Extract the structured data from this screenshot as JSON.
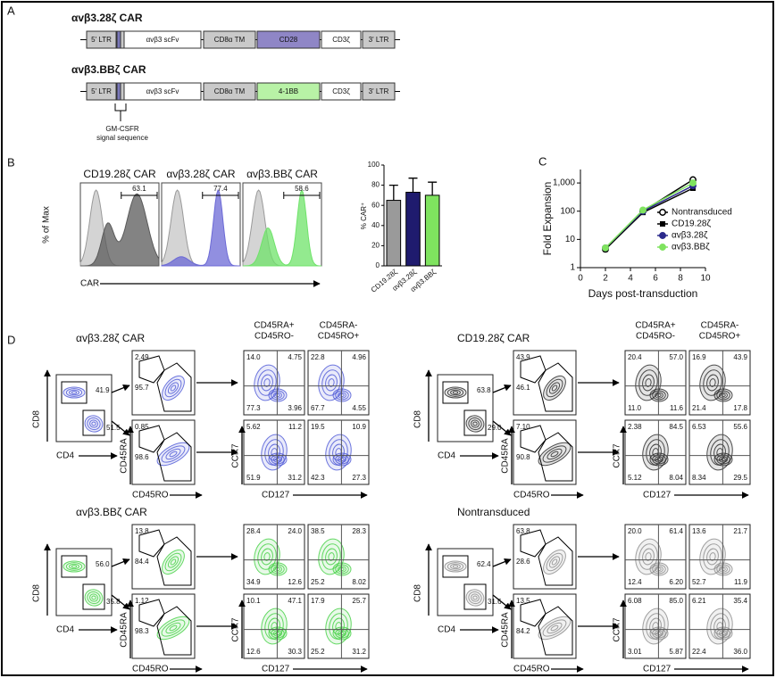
{
  "panel_a": {
    "label": "A",
    "constructs": [
      {
        "title": "αvβ3.28ζ CAR",
        "costim_color": "#8f86c6",
        "segments": [
          "5' LTR",
          "αvβ3 scFv",
          "CD8α TM",
          "CD28",
          "CD3ζ",
          "3' LTR"
        ]
      },
      {
        "title": "αvβ3.BBζ CAR",
        "costim_color": "#b8f2a6",
        "segments": [
          "5' LTR",
          "αvβ3 scFv",
          "CD8α TM",
          "4-1BB",
          "CD3ζ",
          "3' LTR"
        ]
      }
    ],
    "signal_note": [
      "GM-CSFR",
      "signal sequence"
    ]
  },
  "panel_b": {
    "label": "B",
    "y_label": "% of Max",
    "x_label": "CAR",
    "histograms": [
      {
        "title": "CD19.28ζ CAR",
        "gate": "63.1",
        "color": "#5a5a5a"
      },
      {
        "title": "αvβ3.28ζ CAR",
        "gate": "77.4",
        "color": "#6c6ad6"
      },
      {
        "title": "αvβ3.BBζ CAR",
        "gate": "58.6",
        "color": "#6fe36a"
      }
    ]
  },
  "panel_c": {
    "label": "C"
  },
  "chart_data": [
    {
      "type": "bar",
      "y_label": "% CAR⁺",
      "categories": [
        "CD19.28ζ",
        "αvβ3.28ζ",
        "αvβ3.BBζ"
      ],
      "values": [
        65,
        73,
        70
      ],
      "errors": [
        15,
        14,
        13
      ],
      "colors": [
        "#9a9a9a",
        "#1f1b6e",
        "#7fe35f"
      ],
      "ylim": [
        0,
        100
      ],
      "yticks": [
        0,
        20,
        40,
        60,
        80,
        100
      ]
    },
    {
      "type": "line",
      "log_y": true,
      "x_label": "Days post-transduction",
      "y_label": "Fold Expansion",
      "x": [
        2,
        5,
        9
      ],
      "xlim": [
        0,
        10
      ],
      "xticks": [
        0,
        2,
        4,
        6,
        8,
        10
      ],
      "ylim": [
        1,
        3000
      ],
      "yticks": [
        1,
        10,
        100,
        {
          "value": 1000,
          "label": "1,000"
        }
      ],
      "legend": "lower-right",
      "series": [
        {
          "name": "Nontransduced",
          "color": "#000000",
          "marker": "open-circle",
          "values": [
            4.5,
            100,
            1300
          ]
        },
        {
          "name": "CD19.28ζ",
          "color": "#000000",
          "marker": "square",
          "values": [
            4.5,
            90,
            650
          ]
        },
        {
          "name": "αvβ3.28ζ",
          "color": "#2b2a8c",
          "marker": "circle",
          "values": [
            5,
            100,
            800
          ]
        },
        {
          "name": "αvβ3.BBζ",
          "color": "#7fe35f",
          "marker": "circle",
          "values": [
            5,
            110,
            1000
          ]
        }
      ]
    }
  ],
  "panel_d": {
    "label": "D",
    "headers": [
      [
        "CD45RA+",
        "CD45RO-"
      ],
      [
        "CD45RA-",
        "CD45RO+"
      ]
    ],
    "axis_labels": {
      "cd8": "CD8",
      "cd4": "CD4",
      "cd45ra": "CD45RA",
      "cd45ro": "CD45RO",
      "ccr7": "CCR7",
      "cd127": "CD127"
    },
    "groups": [
      {
        "title": "αvβ3.28ζ CAR",
        "color": "#4a55d6",
        "cd4_cd8": [
          "41.9",
          "51.5"
        ],
        "ra_ro": [
          [
            "2.49",
            "95.7"
          ],
          [
            "0.85",
            "98.6"
          ]
        ],
        "quadrants": [
          [
            [
              "14.0",
              "4.75",
              "77.3",
              "3.96"
            ],
            [
              "22.8",
              "4.96",
              "67.7",
              "4.55"
            ]
          ],
          [
            [
              "5.62",
              "11.2",
              "51.9",
              "31.2"
            ],
            [
              "19.5",
              "10.9",
              "42.3",
              "27.3"
            ]
          ]
        ]
      },
      {
        "title": "CD19.28ζ CAR",
        "color": "#222222",
        "cd4_cd8": [
          "63.8",
          "29.0"
        ],
        "ra_ro": [
          [
            "43.9",
            "46.1"
          ],
          [
            "7.10",
            "90.8"
          ]
        ],
        "quadrants": [
          [
            [
              "20.4",
              "57.0",
              "11.0",
              "11.6"
            ],
            [
              "16.9",
              "43.9",
              "21.4",
              "17.8"
            ]
          ],
          [
            [
              "2.38",
              "84.5",
              "5.12",
              "8.04"
            ],
            [
              "6.53",
              "55.6",
              "8.34",
              "29.5"
            ]
          ]
        ]
      },
      {
        "title": "αvβ3.BBζ CAR",
        "color": "#3fcf3f",
        "cd4_cd8": [
          "56.0",
          "35.8"
        ],
        "ra_ro": [
          [
            "13.8",
            "84.4"
          ],
          [
            "1.12",
            "98.3"
          ]
        ],
        "quadrants": [
          [
            [
              "28.4",
              "24.0",
              "34.9",
              "12.6"
            ],
            [
              "38.5",
              "28.3",
              "25.2",
              "8.02"
            ]
          ],
          [
            [
              "10.1",
              "47.1",
              "12.6",
              "30.3"
            ],
            [
              "17.9",
              "25.7",
              "25.2",
              "31.2"
            ]
          ]
        ]
      },
      {
        "title": "Nontransduced",
        "color": "#8a8a8a",
        "cd4_cd8": [
          "62.4",
          "31.6"
        ],
        "ra_ro": [
          [
            "63.8",
            "28.6"
          ],
          [
            "13.5",
            "84.2"
          ]
        ],
        "quadrants": [
          [
            [
              "20.0",
              "61.4",
              "12.4",
              "6.20"
            ],
            [
              "13.6",
              "21.7",
              "52.7",
              "11.9"
            ]
          ],
          [
            [
              "6.08",
              "85.0",
              "3.01",
              "5.87"
            ],
            [
              "6.21",
              "35.4",
              "22.4",
              "36.0"
            ]
          ]
        ]
      }
    ]
  }
}
